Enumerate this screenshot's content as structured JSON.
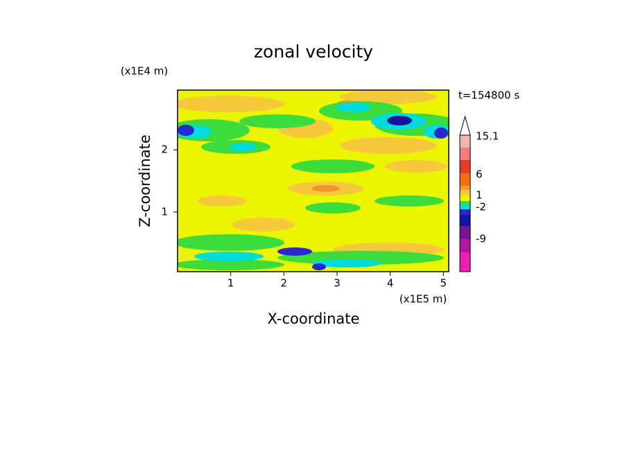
{
  "chart_data": {
    "type": "contour",
    "title": "zonal velocity",
    "x_label": "X-coordinate",
    "y_label": "Z-coordinate",
    "x_unit": "(x1E5 m)",
    "y_unit": "(x1E4 m)",
    "time_label": "t=154800 s",
    "xlim": [
      0,
      5.1
    ],
    "ylim": [
      0.04,
      2.96
    ],
    "xticks": [
      1,
      2,
      3,
      4,
      5
    ],
    "yticks": [
      1,
      2
    ],
    "colorbar_labels": [
      15.1,
      6,
      1,
      -2,
      -9
    ]
  }
}
